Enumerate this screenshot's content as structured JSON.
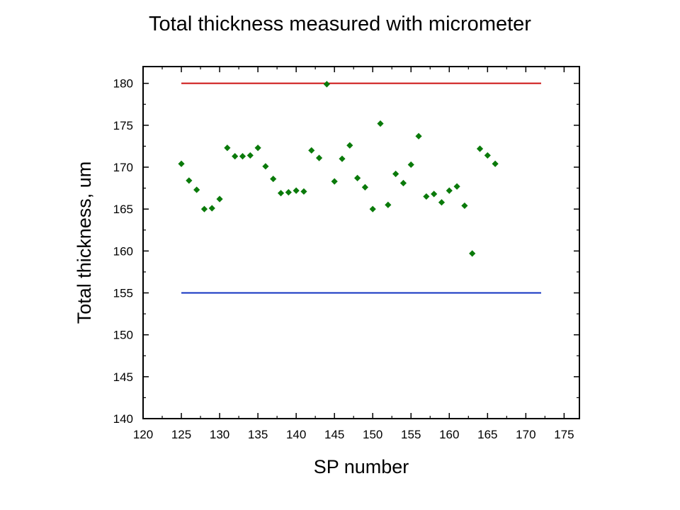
{
  "slide": {
    "title": "Total thickness measured with micrometer"
  },
  "chart_data": {
    "type": "scatter",
    "title": "Total thickness measured with micrometer",
    "xlabel": "SP number",
    "ylabel": "Total thickness, um",
    "xlim": [
      120,
      177
    ],
    "ylim": [
      140,
      182
    ],
    "x_ticks": [
      120,
      125,
      130,
      135,
      140,
      145,
      150,
      155,
      160,
      165,
      170,
      175
    ],
    "y_ticks": [
      140,
      145,
      150,
      155,
      160,
      165,
      170,
      175,
      180
    ],
    "grid": false,
    "legend": "none",
    "colors": {
      "points": "#0a7a0a",
      "upper_limit": "#cc1111",
      "lower_limit": "#1030c0",
      "axis": "#000000"
    },
    "reference_lines": [
      {
        "y": 180,
        "x_start": 125,
        "x_end": 172
      },
      {
        "y": 155,
        "x_start": 125,
        "x_end": 172
      }
    ],
    "series": [
      {
        "marker": "diamond",
        "x": [
          125,
          126,
          127,
          128,
          129,
          130,
          131,
          132,
          133,
          134,
          135,
          136,
          137,
          138,
          139,
          140,
          141,
          142,
          143,
          144,
          145,
          146,
          147,
          148,
          149,
          150,
          151,
          152,
          153,
          154,
          155,
          156,
          157,
          158,
          159,
          160,
          161,
          162,
          163,
          164,
          165,
          166
        ],
        "y": [
          170.4,
          168.4,
          167.3,
          165.0,
          165.1,
          166.2,
          172.3,
          171.3,
          171.3,
          171.4,
          172.3,
          170.1,
          168.6,
          166.9,
          167.0,
          167.2,
          167.1,
          172.0,
          171.1,
          179.9,
          168.3,
          171.0,
          172.6,
          168.7,
          167.6,
          165.0,
          175.2,
          165.5,
          169.2,
          168.1,
          170.3,
          173.7,
          166.5,
          166.8,
          165.8,
          167.2,
          167.7,
          165.4,
          159.7,
          172.2,
          171.4,
          170.4
        ]
      }
    ]
  }
}
